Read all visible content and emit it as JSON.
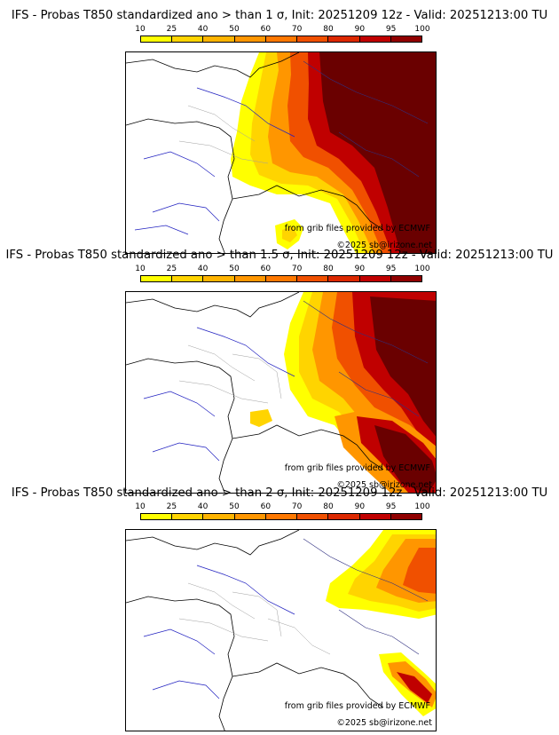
{
  "colorbar": {
    "levels": [
      "10",
      "25",
      "40",
      "50",
      "60",
      "70",
      "80",
      "90",
      "95",
      "100"
    ],
    "colors": [
      "#ffff00",
      "#ffd400",
      "#ffb400",
      "#ff9600",
      "#ff7800",
      "#f05000",
      "#dc2800",
      "#c00000",
      "#900000",
      "#6a0000"
    ]
  },
  "panels": [
    {
      "title": "IFS - Probas T850  standardized ano > than 1 σ, Init: 20251209 12z - Valid: 20251213:00 TU",
      "credit_source": "from grib files provided by ECMWF",
      "credit_copyright": "©2025 sb@irizone.net"
    },
    {
      "title": "IFS - Probas T850  standardized ano > than 1.5 σ, Init: 20251209 12z - Valid: 20251213:00 TU",
      "credit_source": "from grib files provided by ECMWF",
      "credit_copyright": "©2025 sb@irizone.net"
    },
    {
      "title": "IFS - Probas T850  standardized ano > than 2 σ, Init: 20251209 12z - Valid: 20251213:00 TU",
      "credit_source": "from grib files provided by ECMWF",
      "credit_copyright": "©2025 sb@irizone.net"
    }
  ],
  "map_style": {
    "coast_color": "#000000",
    "river_color": "#2020c0",
    "dept_color": "#a0a0a0",
    "border_color": "#303080"
  }
}
